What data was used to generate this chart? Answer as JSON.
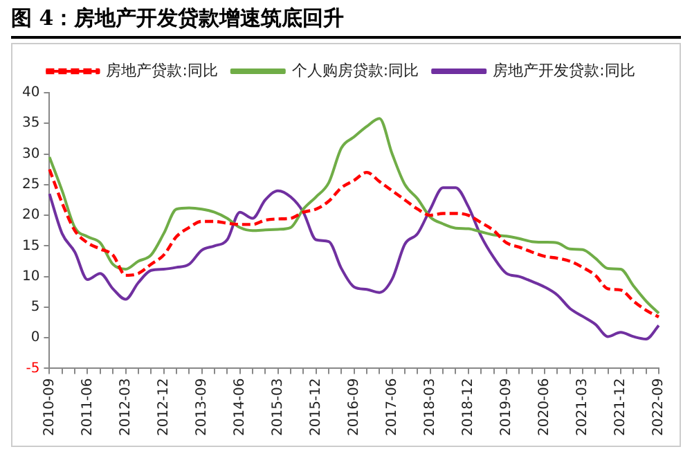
{
  "chart_data": {
    "type": "line",
    "title": "图 4：房地产开发贷款增速筑底回升",
    "categories": [
      "2010-09",
      null,
      null,
      "2011-06",
      null,
      null,
      "2012-03",
      null,
      null,
      "2012-12",
      null,
      null,
      "2013-09",
      null,
      null,
      "2014-06",
      null,
      null,
      "2015-03",
      null,
      null,
      "2015-12",
      null,
      null,
      "2016-09",
      null,
      null,
      "2017-06",
      null,
      null,
      "2018-03",
      null,
      null,
      "2018-12",
      null,
      null,
      "2019-09",
      null,
      null,
      "2020-06",
      null,
      null,
      "2021-03",
      null,
      null,
      "2021-12",
      null,
      null,
      "2022-09"
    ],
    "series": [
      {
        "name": "房地产贷款:同比",
        "color": "#ff0000",
        "line_style": "dashed",
        "values": [
          27.5,
          22,
          17.5,
          15.5,
          14.5,
          13.5,
          10.2,
          10.5,
          12,
          13.5,
          16.5,
          18,
          19,
          19,
          18.7,
          18.5,
          18.5,
          19.2,
          19.4,
          19.5,
          20.5,
          21,
          22.3,
          24.5,
          25.7,
          27,
          25.5,
          24,
          22.5,
          21,
          20,
          20.3,
          20.3,
          20,
          18.8,
          17.5,
          15.5,
          14.8,
          14,
          13.3,
          13,
          12.5,
          11.5,
          10.2,
          8,
          7.8,
          6,
          4.5,
          3.4
        ]
      },
      {
        "name": "个人购房贷款:同比",
        "color": "#70ad47",
        "line_style": "solid",
        "values": [
          29.5,
          24,
          18,
          16.5,
          15.5,
          12,
          11.2,
          12.5,
          13.5,
          17,
          21,
          21.2,
          21,
          20.5,
          19.5,
          18,
          17.5,
          17.6,
          17.7,
          18,
          21,
          23,
          25.3,
          31,
          32.8,
          34.5,
          35.8,
          30,
          25,
          22.7,
          19.7,
          18.6,
          17.9,
          17.8,
          17.3,
          16.8,
          16.6,
          16.2,
          15.7,
          15.6,
          15.5,
          14.5,
          14.4,
          13,
          11.3,
          11.2,
          8.5,
          6,
          4
        ]
      },
      {
        "name": "房地产开发贷款:同比",
        "color": "#7030a0",
        "line_style": "solid",
        "values": [
          23.5,
          17,
          14,
          9.5,
          10.5,
          8,
          6.3,
          9,
          11,
          11.2,
          11.5,
          12,
          14.3,
          15,
          16,
          20.5,
          19.5,
          22.5,
          24,
          23,
          20.5,
          16,
          15.7,
          11.3,
          8.3,
          7.9,
          7.4,
          9.6,
          15.3,
          17,
          21,
          24.5,
          24.5,
          21.4,
          16.6,
          13.1,
          10.5,
          10,
          9.2,
          8.3,
          7,
          4.8,
          3.5,
          2.2,
          0.2,
          0.9,
          0.2,
          -0.2,
          2
        ]
      }
    ],
    "ylim": [
      -5,
      40
    ],
    "yticks": [
      -5,
      0,
      5,
      10,
      15,
      20,
      25,
      30,
      35,
      40
    ],
    "grid": false,
    "legend": "top",
    "marker": "none"
  }
}
